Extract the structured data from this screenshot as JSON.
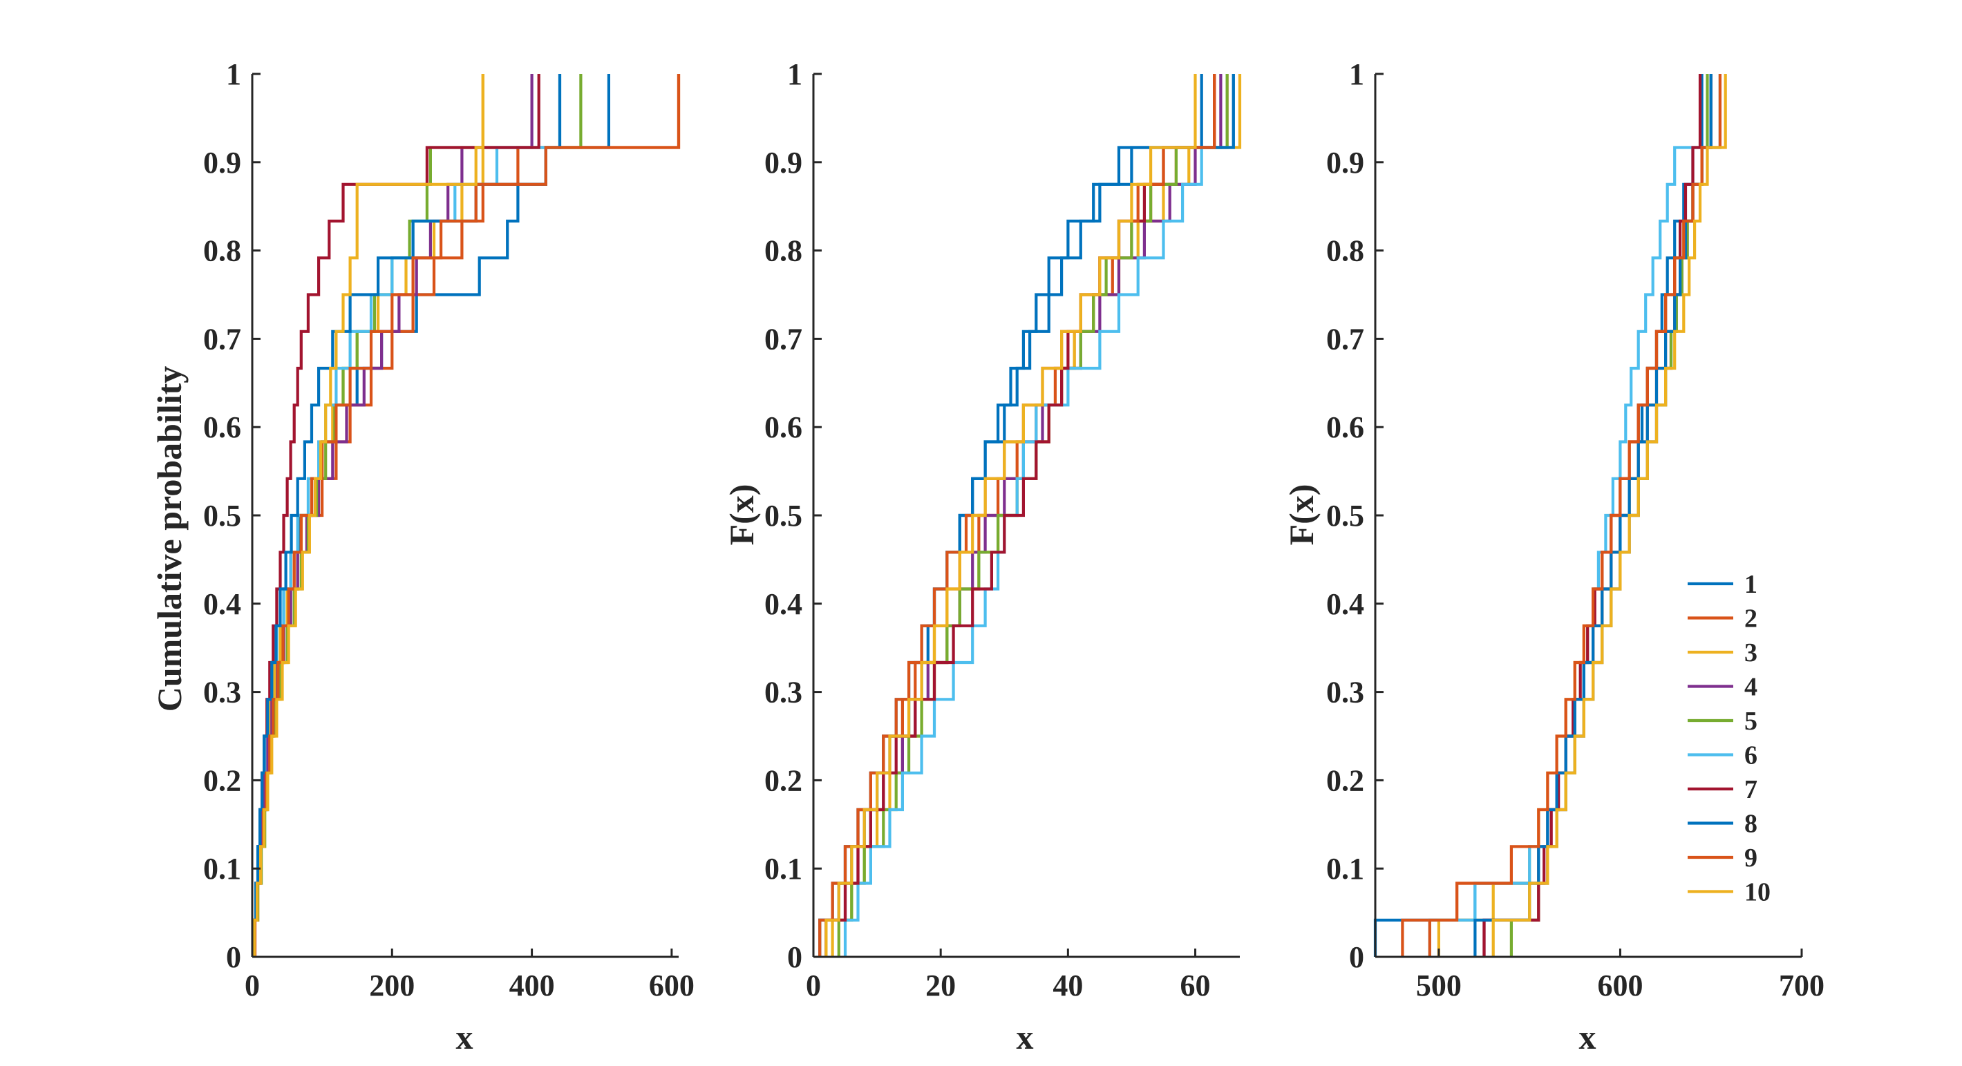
{
  "figure": {
    "colors": [
      "#0072BD",
      "#D95319",
      "#EDB120",
      "#7E2F8E",
      "#77AC30",
      "#4DBEEE",
      "#A2142F",
      "#0072BD",
      "#D95319",
      "#EDB120"
    ],
    "legend": {
      "labels": [
        "1",
        "2",
        "3",
        "4",
        "5",
        "6",
        "7",
        "8",
        "9",
        "10"
      ],
      "placement": "inside-lower-right of third panel"
    }
  },
  "chart_data": [
    {
      "type": "line",
      "subtype": "empirical-cdf-stairs",
      "xlabel": "x",
      "ylabel": "Cumulative probability",
      "xlim": [
        0,
        610
      ],
      "ylim": [
        0,
        1
      ],
      "xticks": [
        "0",
        "200",
        "400",
        "600"
      ],
      "yticks": [
        "0",
        "0.1",
        "0.2",
        "0.3",
        "0.4",
        "0.5",
        "0.6",
        "0.7",
        "0.8",
        "0.9",
        "1"
      ],
      "grid": false,
      "series": [
        {
          "values": [
            2,
            5,
            9,
            12,
            15,
            18,
            22,
            28,
            35,
            45,
            55,
            68,
            85,
            100,
            120,
            150,
            185,
            235,
            325,
            365,
            380,
            420,
            510
          ]
        },
        {
          "values": [
            4,
            8,
            12,
            16,
            20,
            24,
            30,
            38,
            45,
            55,
            65,
            80,
            100,
            120,
            140,
            170,
            200,
            230,
            260,
            300,
            330,
            380,
            610
          ]
        },
        {
          "values": [
            2,
            6,
            10,
            14,
            18,
            22,
            26,
            32,
            40,
            50,
            60,
            70,
            85,
            100,
            115,
            130,
            150,
            180,
            220,
            260,
            300,
            330,
            330
          ]
        },
        {
          "values": [
            2,
            6,
            10,
            14,
            18,
            22,
            28,
            36,
            45,
            55,
            65,
            78,
            95,
            115,
            135,
            160,
            185,
            210,
            235,
            255,
            280,
            300,
            400
          ]
        },
        {
          "values": [
            3,
            8,
            13,
            18,
            22,
            26,
            32,
            40,
            50,
            60,
            70,
            80,
            92,
            105,
            118,
            130,
            150,
            175,
            200,
            225,
            250,
            255,
            470
          ]
        },
        {
          "values": [
            2,
            5,
            8,
            11,
            14,
            18,
            22,
            28,
            35,
            45,
            55,
            65,
            80,
            95,
            105,
            120,
            140,
            170,
            200,
            230,
            290,
            350,
            440
          ]
        },
        {
          "values": [
            2,
            5,
            8,
            11,
            14,
            17,
            21,
            25,
            30,
            35,
            40,
            45,
            50,
            55,
            60,
            65,
            70,
            80,
            95,
            110,
            130,
            250,
            410
          ]
        },
        {
          "values": [
            2,
            5,
            8,
            11,
            14,
            17,
            22,
            28,
            34,
            40,
            48,
            56,
            65,
            75,
            85,
            95,
            115,
            140,
            180,
            230,
            320,
            420,
            440
          ]
        },
        {
          "values": [
            3,
            7,
            12,
            16,
            20,
            25,
            30,
            37,
            44,
            52,
            60,
            70,
            85,
            100,
            120,
            140,
            170,
            200,
            230,
            270,
            320,
            420,
            610
          ]
        },
        {
          "values": [
            3,
            7,
            12,
            17,
            22,
            28,
            35,
            43,
            52,
            62,
            72,
            82,
            90,
            98,
            105,
            112,
            120,
            130,
            140,
            150,
            150,
            320,
            330
          ]
        }
      ]
    },
    {
      "type": "line",
      "subtype": "empirical-cdf-stairs",
      "xlabel": "x",
      "ylabel": "F(x)",
      "xlim": [
        0,
        67
      ],
      "ylim": [
        0,
        1
      ],
      "xticks": [
        "0",
        "20",
        "40",
        "60"
      ],
      "yticks": [
        "0",
        "0.1",
        "0.2",
        "0.3",
        "0.4",
        "0.5",
        "0.6",
        "0.7",
        "0.8",
        "0.9",
        "1"
      ],
      "grid": false,
      "series": [
        {
          "values": [
            1,
            4,
            6,
            8,
            10,
            12,
            15,
            17,
            18,
            19,
            21,
            23,
            25,
            27,
            30,
            32,
            34,
            37,
            39,
            42,
            45,
            48,
            61
          ]
        },
        {
          "values": [
            1,
            3,
            5,
            7,
            9,
            11,
            14,
            16,
            19,
            21,
            23,
            26,
            29,
            32,
            35,
            38,
            41,
            44,
            47,
            50,
            53,
            57,
            65
          ]
        },
        {
          "values": [
            3,
            6,
            8,
            10,
            12,
            14,
            17,
            19,
            21,
            23,
            26,
            29,
            32,
            35,
            37,
            39,
            41,
            44,
            48,
            51,
            55,
            59,
            67
          ]
        },
        {
          "values": [
            2,
            5,
            7,
            9,
            11,
            14,
            16,
            18,
            21,
            23,
            25,
            27,
            30,
            33,
            36,
            39,
            42,
            45,
            48,
            52,
            56,
            60,
            64
          ]
        },
        {
          "values": [
            4,
            6,
            8,
            11,
            13,
            15,
            17,
            19,
            21,
            23,
            26,
            29,
            32,
            35,
            37,
            39,
            42,
            44,
            46,
            50,
            53,
            57,
            65
          ]
        },
        {
          "values": [
            5,
            7,
            9,
            12,
            14,
            17,
            19,
            22,
            25,
            27,
            29,
            30,
            32,
            33,
            35,
            40,
            45,
            48,
            51,
            55,
            58,
            61,
            66
          ]
        },
        {
          "values": [
            2,
            5,
            7,
            9,
            11,
            13,
            16,
            19,
            22,
            25,
            28,
            30,
            33,
            35,
            37,
            39,
            40,
            42,
            45,
            48,
            52,
            55,
            63
          ]
        },
        {
          "values": [
            1,
            3,
            5,
            7,
            9,
            11,
            13,
            15,
            17,
            19,
            21,
            23,
            25,
            27,
            29,
            31,
            33,
            35,
            37,
            40,
            44,
            50,
            66
          ]
        },
        {
          "values": [
            1,
            3,
            5,
            7,
            9,
            11,
            13,
            15,
            17,
            19,
            21,
            24,
            27,
            30,
            33,
            36,
            39,
            42,
            45,
            48,
            51,
            55,
            63
          ]
        },
        {
          "values": [
            2,
            4,
            6,
            8,
            10,
            12,
            15,
            17,
            19,
            21,
            23,
            25,
            27,
            30,
            33,
            36,
            39,
            42,
            45,
            48,
            50,
            53,
            60
          ]
        }
      ]
    },
    {
      "type": "line",
      "subtype": "empirical-cdf-stairs",
      "xlabel": "x",
      "ylabel": "F(x)",
      "xlim": [
        465,
        700
      ],
      "ylim": [
        0,
        1
      ],
      "xticks": [
        "500",
        "600",
        "700"
      ],
      "yticks": [
        "0",
        "0.1",
        "0.2",
        "0.3",
        "0.4",
        "0.5",
        "0.6",
        "0.7",
        "0.8",
        "0.9",
        "1"
      ],
      "grid": false,
      "series": [
        {
          "values": [
            465,
            520,
            555,
            560,
            565,
            570,
            575,
            580,
            585,
            590,
            595,
            600,
            605,
            610,
            612,
            615,
            620,
            623,
            626,
            630,
            635,
            640,
            645
          ]
        },
        {
          "values": [
            480,
            510,
            555,
            560,
            565,
            570,
            575,
            580,
            585,
            590,
            595,
            600,
            605,
            610,
            615,
            620,
            625,
            630,
            633,
            636,
            640,
            645,
            650
          ]
        },
        {
          "values": [
            500,
            530,
            550,
            555,
            560,
            565,
            570,
            575,
            580,
            585,
            590,
            595,
            600,
            605,
            610,
            615,
            620,
            625,
            630,
            635,
            640,
            645,
            650
          ]
        },
        {
          "values": [
            525,
            555,
            560,
            565,
            570,
            575,
            580,
            585,
            590,
            595,
            600,
            605,
            610,
            615,
            620,
            625,
            628,
            631,
            634,
            637,
            640,
            645,
            650
          ]
        },
        {
          "values": [
            540,
            555,
            560,
            565,
            570,
            575,
            580,
            585,
            590,
            595,
            600,
            605,
            610,
            615,
            620,
            625,
            628,
            631,
            634,
            637,
            640,
            645,
            648
          ]
        },
        {
          "values": [
            495,
            520,
            550,
            560,
            565,
            570,
            575,
            580,
            582,
            585,
            588,
            592,
            596,
            600,
            603,
            606,
            610,
            614,
            618,
            622,
            626,
            630,
            655
          ]
        },
        {
          "values": [
            525,
            555,
            558,
            562,
            566,
            570,
            574,
            578,
            582,
            586,
            590,
            595,
            600,
            605,
            610,
            615,
            620,
            625,
            630,
            633,
            636,
            640,
            644
          ]
        },
        {
          "values": [
            520,
            550,
            555,
            560,
            565,
            570,
            575,
            580,
            585,
            590,
            595,
            600,
            605,
            610,
            615,
            620,
            625,
            630,
            633,
            636,
            640,
            645,
            650
          ]
        },
        {
          "values": [
            495,
            510,
            540,
            555,
            560,
            565,
            570,
            575,
            580,
            585,
            590,
            595,
            600,
            605,
            610,
            615,
            620,
            625,
            630,
            635,
            640,
            645,
            655
          ]
        },
        {
          "values": [
            530,
            550,
            560,
            565,
            570,
            575,
            580,
            585,
            590,
            595,
            600,
            605,
            610,
            615,
            620,
            625,
            630,
            635,
            638,
            641,
            644,
            648,
            658
          ]
        }
      ]
    }
  ]
}
